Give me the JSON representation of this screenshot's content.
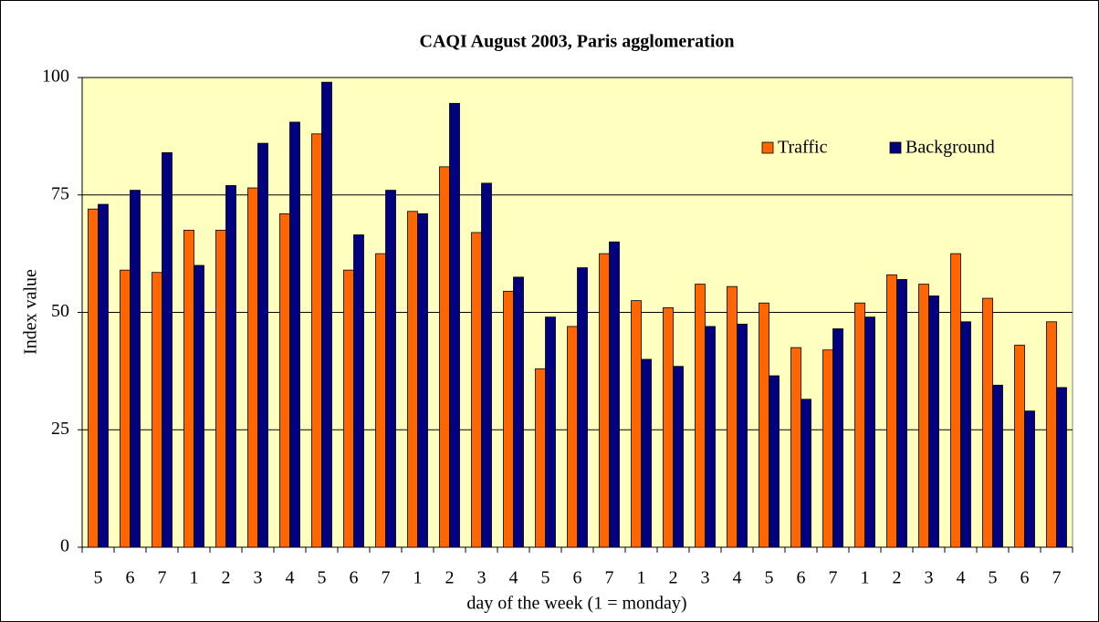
{
  "chart_data": {
    "type": "bar",
    "title": "CAQI August 2003, Paris agglomeration",
    "x_label": "day of the week (1 = monday)",
    "y_label": "Index value",
    "categories": [
      "5",
      "6",
      "7",
      "1",
      "2",
      "3",
      "4",
      "5",
      "6",
      "7",
      "1",
      "2",
      "3",
      "4",
      "5",
      "6",
      "7",
      "1",
      "2",
      "3",
      "4",
      "5",
      "6",
      "7",
      "1",
      "2",
      "3",
      "4",
      "5",
      "6",
      "7"
    ],
    "series": [
      {
        "name": "Traffic",
        "color": "#ff6600",
        "values": [
          72,
          59,
          58.5,
          67.5,
          67.5,
          76.5,
          71,
          88,
          59,
          62.5,
          71.5,
          81,
          67,
          54.5,
          38,
          47,
          62.5,
          52.5,
          51,
          56,
          55.5,
          52,
          42.5,
          42,
          52,
          58,
          56,
          62.5,
          53,
          43,
          48
        ]
      },
      {
        "name": "Background",
        "color": "#000080",
        "values": [
          73,
          76,
          84,
          60,
          77,
          86,
          90.5,
          99,
          66.5,
          76,
          71,
          94.5,
          77.5,
          57.5,
          49,
          59.5,
          65,
          40,
          38.5,
          47,
          47.5,
          36.5,
          31.5,
          46.5,
          49,
          57,
          53.5,
          48,
          34.5,
          29,
          34
        ]
      }
    ],
    "ylim": [
      0,
      100
    ],
    "yticks": [
      0,
      25,
      50,
      75,
      100
    ],
    "grid": true,
    "plot_background": "#ffffc0",
    "legend": "upper right"
  }
}
